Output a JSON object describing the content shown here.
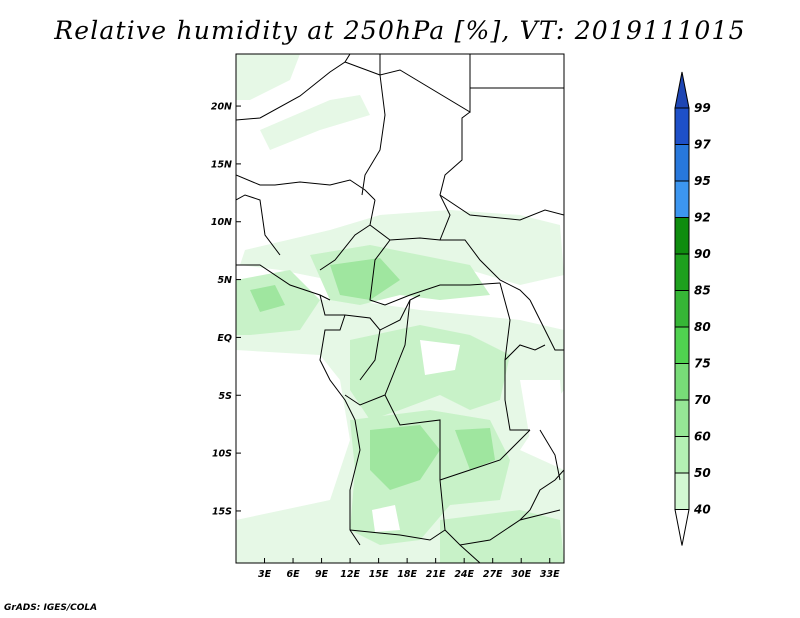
{
  "title": "Relative humidity at 250hPa [%], VT: 2019111015",
  "credit": "GrADS: IGES/COLA",
  "map": {
    "lat_ticks": [
      "20N",
      "15N",
      "10N",
      "5N",
      "EQ",
      "5S",
      "10S",
      "15S"
    ],
    "lat_values": [
      20,
      15,
      10,
      5,
      0,
      -5,
      -10,
      -15
    ],
    "lon_ticks": [
      "3E",
      "6E",
      "9E",
      "12E",
      "15E",
      "18E",
      "21E",
      "24E",
      "27E",
      "30E",
      "33E"
    ],
    "lon_values": [
      3,
      6,
      9,
      12,
      15,
      18,
      21,
      24,
      27,
      30,
      33
    ],
    "lon_range": [
      0,
      34.5
    ],
    "lat_range": [
      -19.5,
      24.5
    ]
  },
  "colorbar": {
    "labels": [
      "99",
      "97",
      "95",
      "92",
      "90",
      "85",
      "80",
      "75",
      "70",
      "60",
      "50",
      "40"
    ],
    "colors": [
      "#1e50c8",
      "#2878dc",
      "#3c96f0",
      "#0f8c0f",
      "#1ea01e",
      "#36b636",
      "#50d250",
      "#78dc78",
      "#96e696",
      "#b4f0b4",
      "#d2f8d2",
      "#eefcee"
    ],
    "top_color": "#1e46b4",
    "bottom_color": "#ffffff"
  }
}
